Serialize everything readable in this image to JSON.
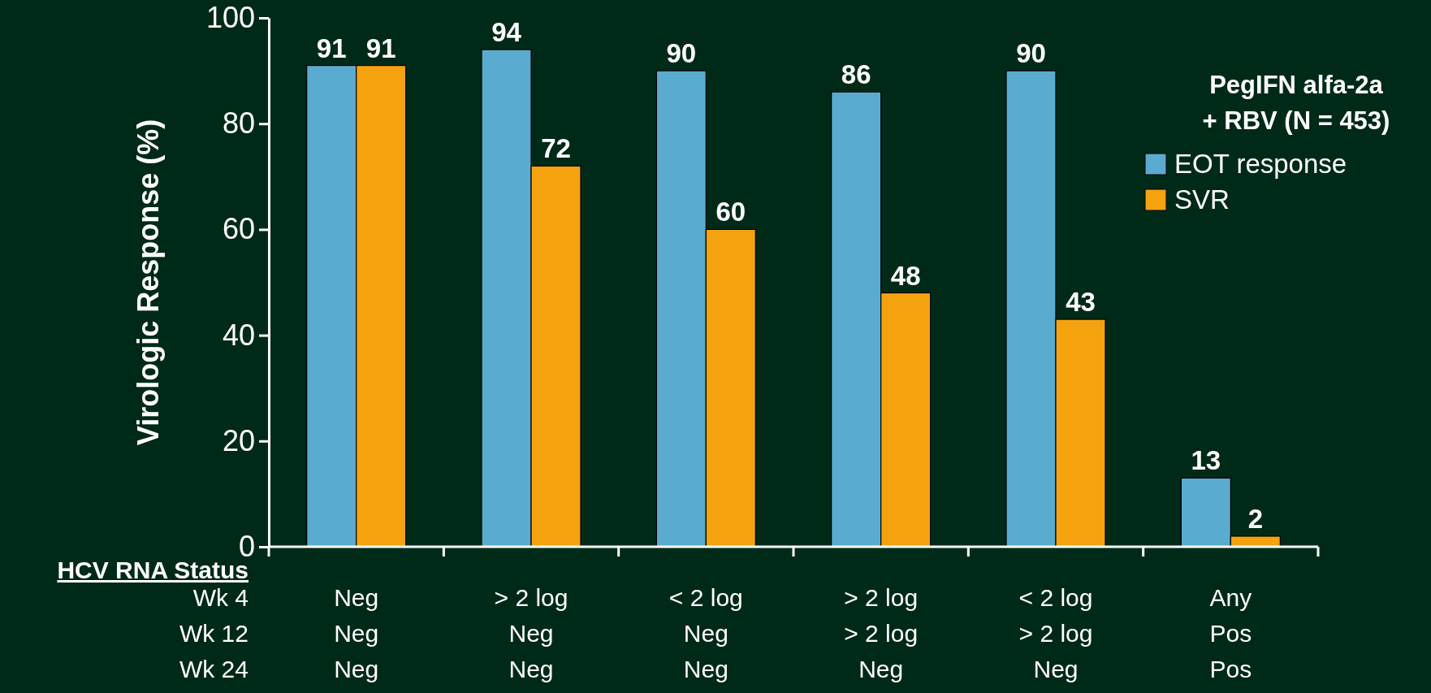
{
  "chart_data": {
    "type": "bar",
    "ylabel": "Virologic Response (%)",
    "legend_title": "PegIFN alfa-2a\n+ RBV (N = 453)",
    "categories": [
      "Neg\nNeg\nNeg",
      "> 2 log\nNeg\nNeg",
      "< 2 log\nNeg\nNeg",
      "> 2 log\n> 2 log\nNeg",
      "< 2 log\n> 2 log\nNeg",
      "Any\nPos\nPos"
    ],
    "series": [
      {
        "name": "EOT response",
        "color": "#5aabd0",
        "values": [
          91,
          94,
          90,
          86,
          90,
          13
        ]
      },
      {
        "name": "SVR",
        "color": "#f5a20f",
        "values": [
          91,
          72,
          60,
          48,
          43,
          2
        ]
      }
    ],
    "ylim": [
      0,
      100
    ],
    "yticks": [
      0,
      20,
      40,
      60,
      80,
      100
    ],
    "data_labels": true,
    "grid": false,
    "legend": "top right",
    "annotations": [
      "HCV RNA Status",
      "Wk 4",
      "Wk 12",
      "Wk 24"
    ]
  }
}
